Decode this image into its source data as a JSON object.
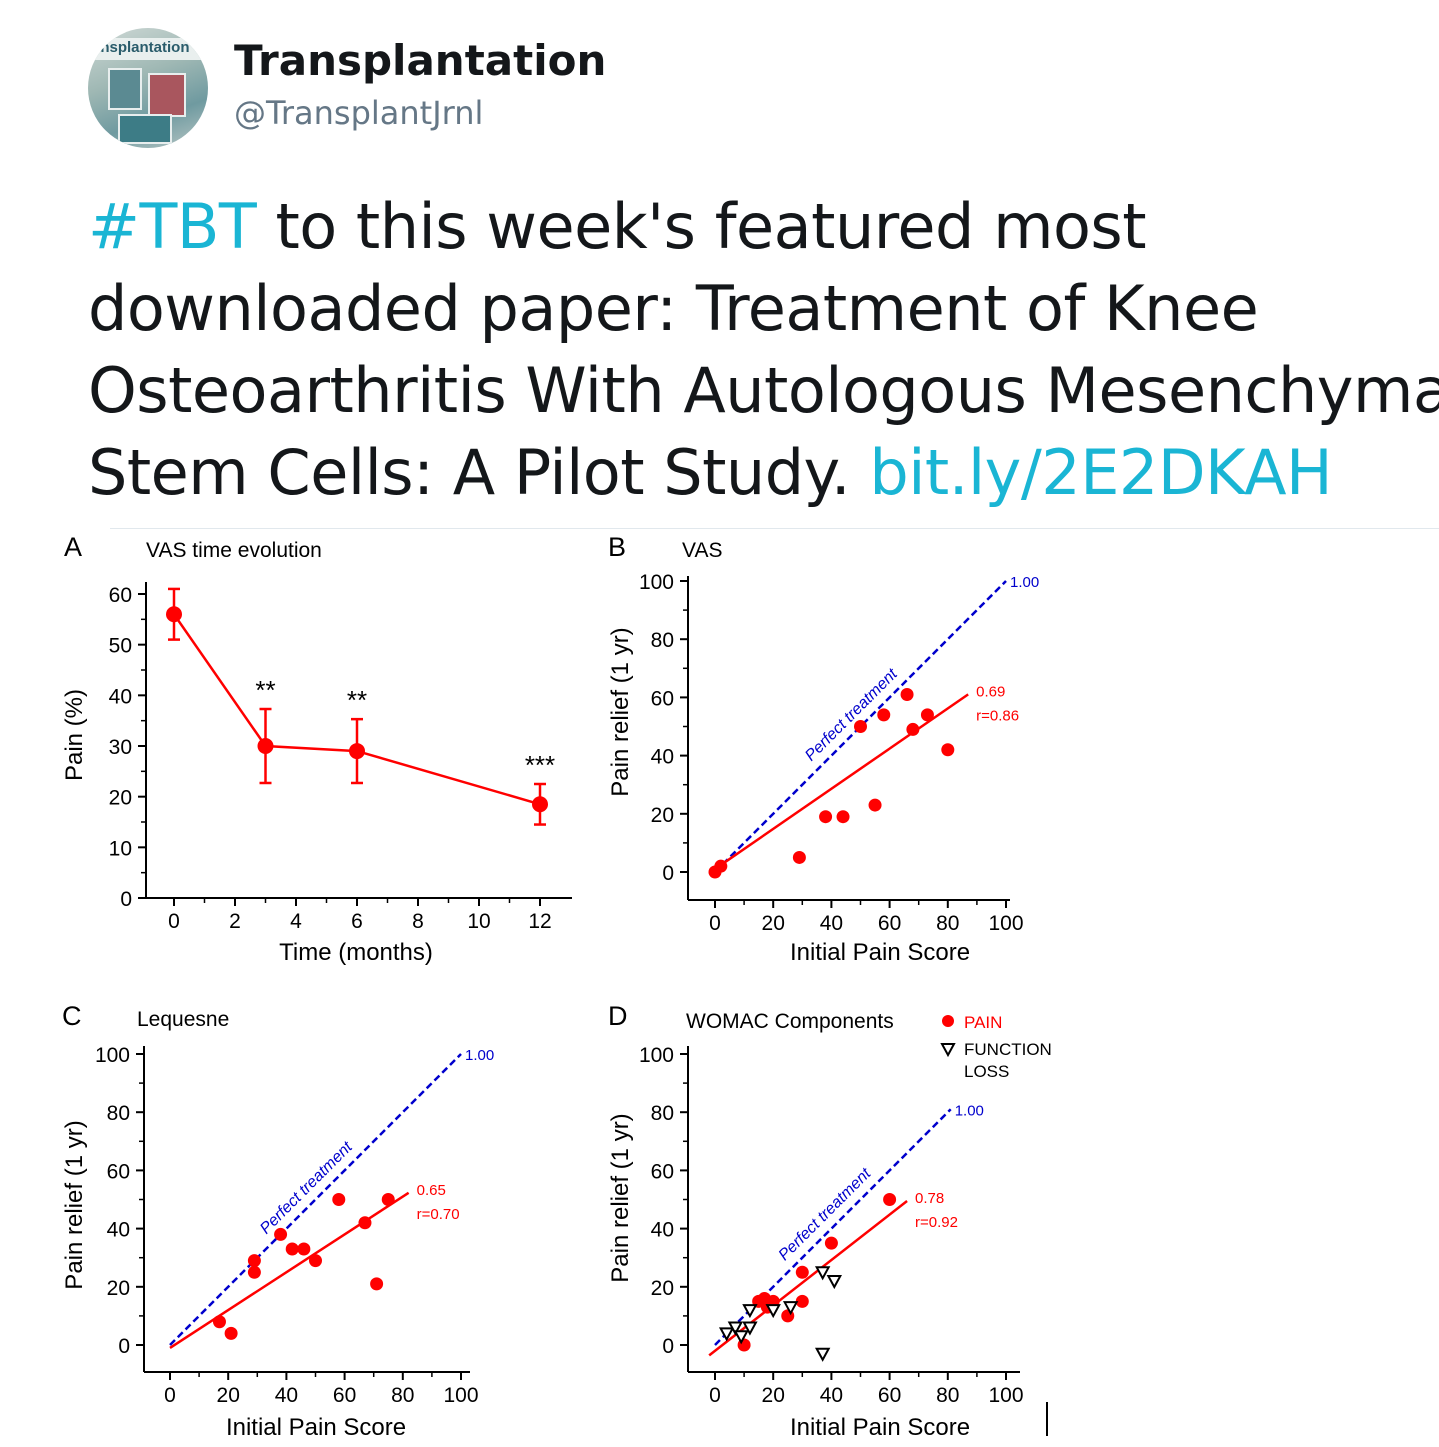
{
  "account": {
    "avatar_label": "ansplantation",
    "display_name": "Transplantation",
    "handle": "@TransplantJrnl"
  },
  "tweet": {
    "line1_hashtag": "#TBT",
    "line1_rest": " to this week's featured most",
    "line2": "downloaded paper: Treatment of Knee",
    "line3": "Osteoarthritis With Autologous Mesenchymal",
    "line4_text": "Stem Cells:  A Pilot Study. ",
    "line4_link": "bit.ly/2E2DKAH"
  },
  "colors": {
    "series": "#ff0000",
    "perfect": "#0000cc",
    "link": "#1ab5d4",
    "text": "#14171a",
    "muted": "#657786"
  },
  "chart_data": [
    {
      "panel": "A",
      "type": "line",
      "title": "VAS time evolution",
      "xlabel": "Time (months)",
      "ylabel": "Pain (%)",
      "xlim": [
        -1,
        13
      ],
      "ylim": [
        0,
        60
      ],
      "xticks": [
        0,
        2,
        4,
        6,
        8,
        10,
        12
      ],
      "yticks": [
        0,
        10,
        20,
        30,
        40,
        50,
        60
      ],
      "points": [
        {
          "x": 0,
          "y": 56,
          "err": 5
        },
        {
          "x": 3,
          "y": 30,
          "err": 7.3,
          "sig": "**"
        },
        {
          "x": 6,
          "y": 29,
          "err": 6.3,
          "sig": "**"
        },
        {
          "x": 12,
          "y": 18.5,
          "err": 4,
          "sig": "***"
        }
      ]
    },
    {
      "panel": "B",
      "type": "scatter",
      "title": "VAS",
      "xlabel": "Initial Pain Score",
      "ylabel": "Pain relief (1 yr)",
      "xlim": [
        0,
        100
      ],
      "ylim": [
        0,
        100
      ],
      "xticks": [
        0,
        20,
        40,
        60,
        80,
        100
      ],
      "yticks": [
        0,
        20,
        40,
        60,
        80,
        100
      ],
      "perfect_label": "Perfect treatment",
      "perfect_slope": "1.00",
      "fit_slope": "0.69",
      "fit_r": "r=0.86",
      "fit": {
        "slope": 0.69,
        "intercept": 1,
        "xmax": 87
      },
      "perfect_xmax": 100,
      "points": [
        [
          0,
          0
        ],
        [
          2,
          2
        ],
        [
          29,
          5
        ],
        [
          38,
          19
        ],
        [
          44,
          19
        ],
        [
          50,
          50
        ],
        [
          55,
          23
        ],
        [
          58,
          54
        ],
        [
          66,
          61
        ],
        [
          68,
          49
        ],
        [
          73,
          54
        ],
        [
          80,
          42
        ]
      ]
    },
    {
      "panel": "C",
      "type": "scatter",
      "title": "Lequesne",
      "xlabel": "Initial Pain Score",
      "ylabel": "Pain relief (1 yr)",
      "xlim": [
        0,
        100
      ],
      "ylim": [
        0,
        100
      ],
      "xticks": [
        0,
        20,
        40,
        60,
        80,
        100
      ],
      "yticks": [
        0,
        20,
        40,
        60,
        80,
        100
      ],
      "perfect_label": "Perfect treatment",
      "perfect_slope": "1.00",
      "fit_slope": "0.65",
      "fit_r": "r=0.70",
      "fit": {
        "slope": 0.65,
        "intercept": -1,
        "xmax": 82
      },
      "perfect_xmax": 100,
      "points": [
        [
          17,
          8
        ],
        [
          21,
          4
        ],
        [
          29,
          29
        ],
        [
          29,
          25
        ],
        [
          38,
          38
        ],
        [
          42,
          33
        ],
        [
          46,
          33
        ],
        [
          50,
          29
        ],
        [
          58,
          50
        ],
        [
          67,
          42
        ],
        [
          71,
          21
        ],
        [
          75,
          50
        ]
      ]
    },
    {
      "panel": "D",
      "type": "scatter",
      "title": "WOMAC Components",
      "xlabel": "Initial Pain Score",
      "ylabel": "Pain relief (1 yr)",
      "xlim": [
        0,
        100
      ],
      "ylim": [
        0,
        100
      ],
      "xticks": [
        0,
        20,
        40,
        60,
        80,
        100
      ],
      "yticks": [
        0,
        20,
        40,
        60,
        80,
        100
      ],
      "perfect_label": "Perfect treatment",
      "perfect_slope": "1.00",
      "fit_slope": "0.78",
      "fit_r": "r=0.92",
      "fit": {
        "slope": 0.78,
        "intercept": -2,
        "xmax": 66
      },
      "perfect_xmax": 81,
      "legend": [
        {
          "name": "PAIN",
          "marker": "circle"
        },
        {
          "name_line1": "FUNCTION",
          "name_line2": "LOSS",
          "marker": "triangle-down"
        }
      ],
      "points": [
        [
          10,
          0
        ],
        [
          15,
          15
        ],
        [
          17,
          16
        ],
        [
          18,
          13
        ],
        [
          20,
          15
        ],
        [
          25,
          10
        ],
        [
          30,
          15
        ],
        [
          30,
          25
        ],
        [
          40,
          35
        ],
        [
          60,
          50
        ]
      ],
      "points_function": [
        [
          4,
          4
        ],
        [
          7,
          6
        ],
        [
          9,
          3
        ],
        [
          12,
          6
        ],
        [
          12,
          12
        ],
        [
          20,
          12
        ],
        [
          26,
          13
        ],
        [
          37,
          25
        ],
        [
          41,
          22
        ],
        [
          37,
          -3
        ]
      ]
    }
  ]
}
